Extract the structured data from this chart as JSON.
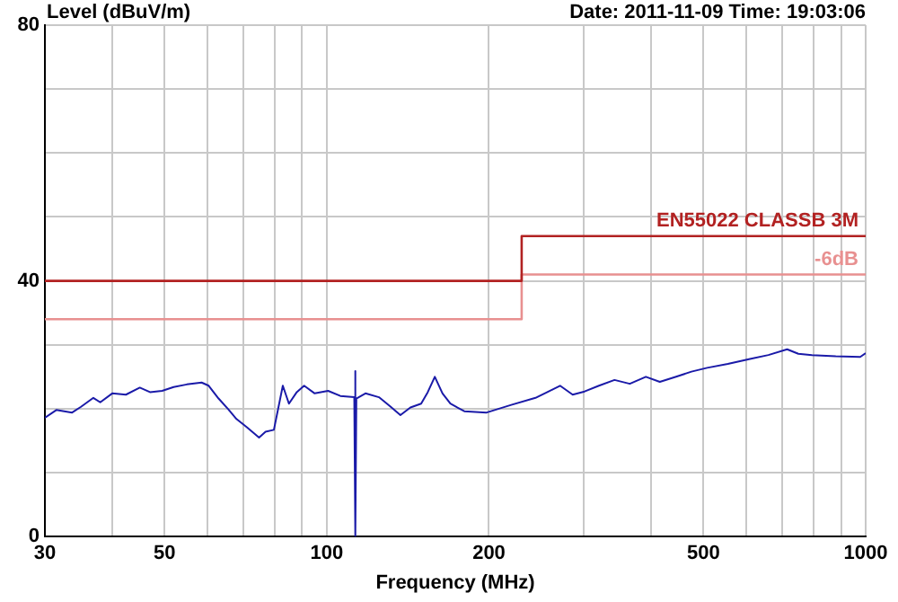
{
  "chart_data": {
    "type": "line",
    "xlabel": "Frequency (MHz)",
    "ylabel": "Level (dBuV/m)",
    "annotations": [
      "Date: 2011-11-09  Time: 19:03:06"
    ],
    "log": "x",
    "grid": true,
    "legend": false,
    "marker": "none",
    "xlim": [
      30,
      1000
    ],
    "xticks": [
      30,
      {
        "value": 40,
        "label": null
      },
      50,
      {
        "value": 60,
        "label": null
      },
      {
        "value": 70,
        "label": null
      },
      {
        "value": 80,
        "label": null
      },
      {
        "value": 90,
        "label": null
      },
      100,
      200,
      {
        "value": 300,
        "label": null
      },
      {
        "value": 400,
        "label": null
      },
      500,
      {
        "value": 600,
        "label": null
      },
      {
        "value": 700,
        "label": null
      },
      {
        "value": 800,
        "label": null
      },
      {
        "value": 900,
        "label": null
      },
      1000
    ],
    "ylim": [
      0,
      80
    ],
    "yticks": [
      0,
      {
        "value": 10,
        "label": null
      },
      {
        "value": 20,
        "label": null
      },
      {
        "value": 30,
        "label": null
      },
      40,
      {
        "value": 50,
        "label": null
      },
      {
        "value": 60,
        "label": null
      },
      {
        "value": 70,
        "label": null
      },
      80
    ],
    "series": [
      {
        "type": "line",
        "color": "#1a1aa8",
        "x": [
          30,
          31.5,
          33.7,
          35,
          36.9,
          38,
          40,
          42.4,
          45,
          47,
          49.5,
          52,
          55,
          58.6,
          60.4,
          63,
          65.7,
          68,
          71.1,
          74.9,
          77,
          79.8,
          82.9,
          85.1,
          88,
          90.8,
          95,
          100.6,
          106,
          112.5,
          113,
          113,
          113.5,
          118,
          125,
          131,
          137,
          143,
          149.7,
          154,
          158.7,
          164,
          169.6,
          180,
          198,
          220,
          244,
          271,
          286,
          301,
          320,
          342,
          365,
          391,
          415,
          445,
          475,
          508,
          555,
          610,
          660,
          715,
          750,
          795,
          880,
          977,
          1000
        ],
        "values": [
          18.6,
          19.8,
          19.4,
          20.3,
          21.7,
          21.0,
          22.4,
          22.2,
          23.3,
          22.6,
          22.8,
          23.4,
          23.8,
          24.1,
          23.6,
          21.6,
          19.9,
          18.4,
          17.1,
          15.5,
          16.4,
          16.7,
          23.6,
          20.8,
          22.6,
          23.6,
          22.4,
          22.8,
          22.0,
          21.8,
          25.9,
          0,
          21.6,
          22.4,
          21.8,
          20.4,
          19.0,
          20.2,
          20.8,
          22.6,
          25.0,
          22.4,
          20.8,
          19.6,
          19.4,
          20.6,
          21.7,
          23.6,
          22.2,
          22.7,
          23.6,
          24.5,
          23.9,
          25.0,
          24.2,
          25.0,
          25.8,
          26.4,
          27.0,
          27.8,
          28.4,
          29.3,
          28.6,
          28.4,
          28.2,
          28.1,
          28.7
        ]
      },
      {
        "type": "line",
        "name": "EN55022 CLASSB 3M",
        "color": "#b22222",
        "x": [
          30,
          230,
          230,
          1000
        ],
        "values": [
          40,
          40,
          47,
          47
        ]
      },
      {
        "type": "line",
        "name": "-6dB",
        "color": "#e89090",
        "x": [
          30,
          230,
          230,
          1000
        ],
        "values": [
          34,
          34,
          41,
          41
        ]
      }
    ]
  }
}
